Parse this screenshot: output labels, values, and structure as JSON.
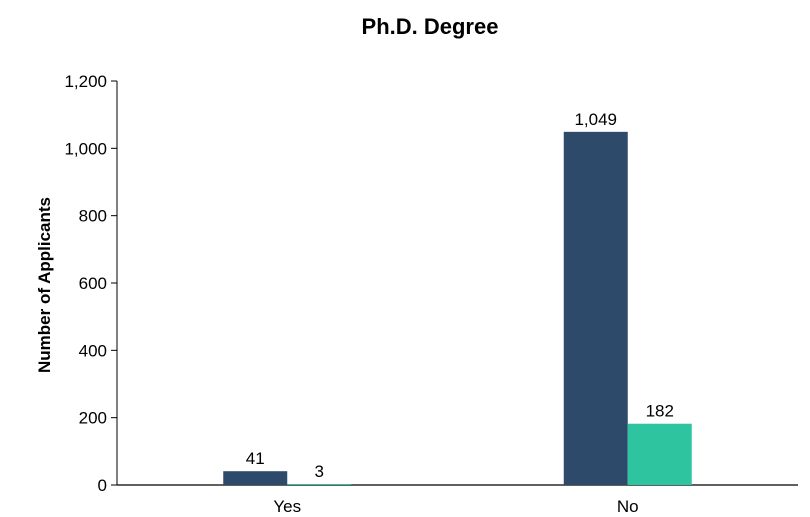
{
  "chart_data": {
    "type": "bar",
    "title": "Ph.D. Degree",
    "xlabel": "",
    "ylabel": "Number of Applicants",
    "categories": [
      "Yes",
      "No"
    ],
    "series": [
      {
        "values": [
          41,
          1049
        ],
        "color": "#2d4a6b"
      },
      {
        "values": [
          3,
          182
        ],
        "color": "#2ec4a0"
      }
    ],
    "data_labels": [
      [
        "41",
        "1,049"
      ],
      [
        "3",
        "182"
      ]
    ],
    "ylim": [
      0,
      1200
    ],
    "yticks": [
      0,
      200,
      400,
      600,
      800,
      1000,
      1200
    ],
    "ytick_labels": [
      "0",
      "200",
      "400",
      "600",
      "800",
      "1,000",
      "1,200"
    ],
    "grid": false,
    "legend": "none"
  }
}
